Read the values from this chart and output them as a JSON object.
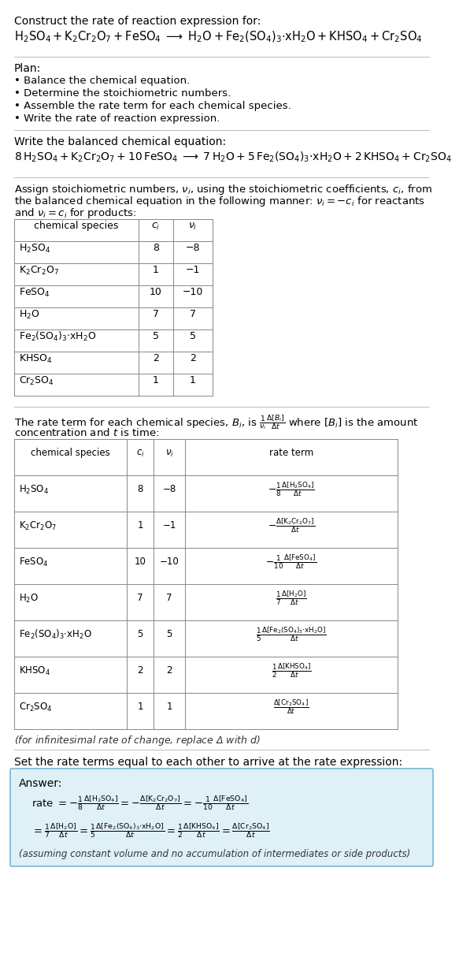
{
  "title": "Construct the rate of reaction expression for:",
  "reaction_unbalanced": "$\\mathrm{H_2SO_4 + K_2Cr_2O_7 + FeSO_4 \\;\\longrightarrow\\; H_2O + Fe_2(SO_4)_3{\\cdot}xH_2O + KHSO_4 + Cr_2SO_4}$",
  "plan_header": "Plan:",
  "plan_items": [
    "• Balance the chemical equation.",
    "• Determine the stoichiometric numbers.",
    "• Assemble the rate term for each chemical species.",
    "• Write the rate of reaction expression."
  ],
  "balanced_header": "Write the balanced chemical equation:",
  "reaction_balanced": "$\\mathrm{8\\,H_2SO_4 + K_2Cr_2O_7 + 10\\,FeSO_4 \\;\\longrightarrow\\; 7\\,H_2O + 5\\,Fe_2(SO_4)_3{\\cdot}xH_2O + 2\\,KHSO_4 + Cr_2SO_4}$",
  "stoich_intro1": "Assign stoichiometric numbers, $\\nu_i$, using the stoichiometric coefficients, $c_i$, from",
  "stoich_intro2": "the balanced chemical equation in the following manner: $\\nu_i = -c_i$ for reactants",
  "stoich_intro3": "and $\\nu_i = c_i$ for products:",
  "table1_headers": [
    "chemical species",
    "$c_i$",
    "$\\nu_i$"
  ],
  "table1_species": [
    "$\\mathrm{H_2SO_4}$",
    "$\\mathrm{K_2Cr_2O_7}$",
    "$\\mathrm{FeSO_4}$",
    "$\\mathrm{H_2O}$",
    "$\\mathrm{Fe_2(SO_4)_3{\\cdot}xH_2O}$",
    "$\\mathrm{KHSO_4}$",
    "$\\mathrm{Cr_2SO_4}$"
  ],
  "table1_ci": [
    "8",
    "1",
    "10",
    "7",
    "5",
    "2",
    "1"
  ],
  "table1_vi": [
    "−8",
    "−1",
    "−10",
    "7",
    "5",
    "2",
    "1"
  ],
  "rate_intro1": "The rate term for each chemical species, $B_i$, is $\\frac{1}{\\nu_i}\\frac{\\Delta[B_i]}{\\Delta t}$ where $[B_i]$ is the amount",
  "rate_intro2": "concentration and $t$ is time:",
  "table2_headers": [
    "chemical species",
    "$c_i$",
    "$\\nu_i$",
    "rate term"
  ],
  "table2_species": [
    "$\\mathrm{H_2SO_4}$",
    "$\\mathrm{K_2Cr_2O_7}$",
    "$\\mathrm{FeSO_4}$",
    "$\\mathrm{H_2O}$",
    "$\\mathrm{Fe_2(SO_4)_3{\\cdot}xH_2O}$",
    "$\\mathrm{KHSO_4}$",
    "$\\mathrm{Cr_2SO_4}$"
  ],
  "table2_ci": [
    "8",
    "1",
    "10",
    "7",
    "5",
    "2",
    "1"
  ],
  "table2_vi": [
    "−8",
    "−1",
    "−10",
    "7",
    "5",
    "2",
    "1"
  ],
  "table2_rate": [
    "$-\\frac{1}{8}\\frac{\\Delta[\\mathrm{H_2SO_4}]}{\\Delta t}$",
    "$-\\frac{\\Delta[\\mathrm{K_2Cr_2O_7}]}{\\Delta t}$",
    "$-\\frac{1}{10}\\frac{\\Delta[\\mathrm{FeSO_4}]}{\\Delta t}$",
    "$\\frac{1}{7}\\frac{\\Delta[\\mathrm{H_2O}]}{\\Delta t}$",
    "$\\frac{1}{5}\\frac{\\Delta[\\mathrm{Fe_2(SO_4)_3{\\cdot}xH_2O}]}{\\Delta t}$",
    "$\\frac{1}{2}\\frac{\\Delta[\\mathrm{KHSO_4}]}{\\Delta t}$",
    "$\\frac{\\Delta[\\mathrm{Cr_2SO_4}]}{\\Delta t}$"
  ],
  "infinitesimal_note": "(for infinitesimal rate of change, replace Δ with $d$)",
  "set_equal_text": "Set the rate terms equal to each other to arrive at the rate expression:",
  "answer_label": "Answer:",
  "answer_line1": "rate $= -\\frac{1}{8}\\frac{\\Delta[\\mathrm{H_2SO_4}]}{\\Delta t} = -\\frac{\\Delta[\\mathrm{K_2Cr_2O_7}]}{\\Delta t} = -\\frac{1}{10}\\frac{\\Delta[\\mathrm{FeSO_4}]}{\\Delta t}$",
  "answer_line2": "$= \\frac{1}{7}\\frac{\\Delta[\\mathrm{H_2O}]}{\\Delta t} = \\frac{1}{5}\\frac{\\Delta[\\mathrm{Fe_2(SO_4)_3{\\cdot}xH_2O}]}{\\Delta t} = \\frac{1}{2}\\frac{\\Delta[\\mathrm{KHSO_4}]}{\\Delta t} = \\frac{\\Delta[\\mathrm{Cr_2SO_4}]}{\\Delta t}$",
  "answer_footnote": "(assuming constant volume and no accumulation of intermediates or side products)",
  "answer_box_color": "#dff0f7",
  "answer_box_border": "#7ab8d4",
  "bg_color": "#ffffff",
  "separator_color": "#cccccc"
}
